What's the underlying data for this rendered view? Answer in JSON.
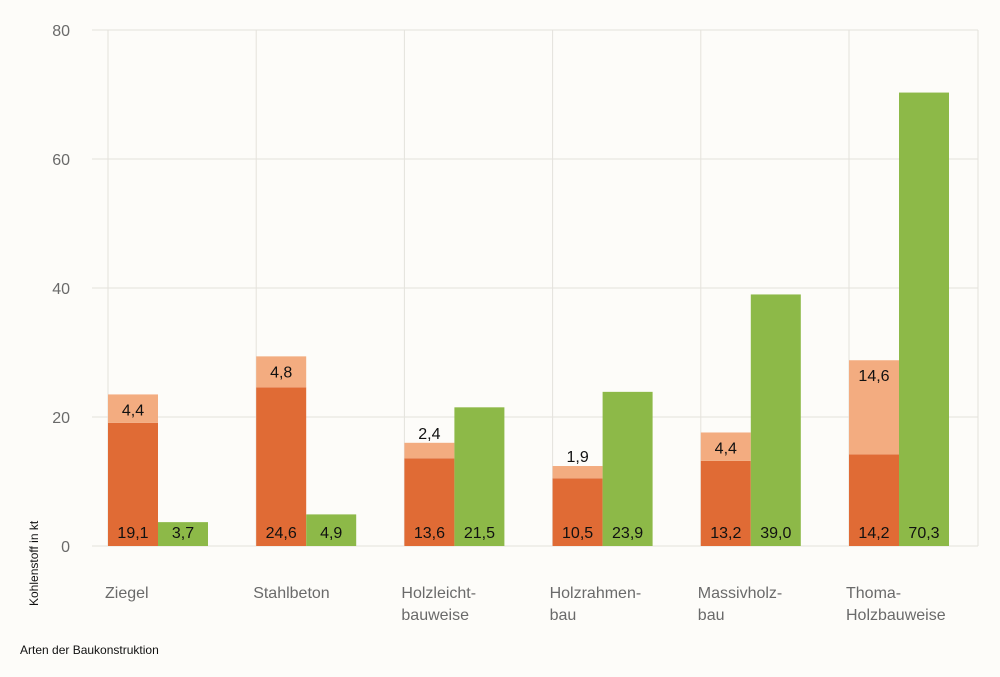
{
  "chart_data": {
    "type": "bar",
    "stacked_first_bar": true,
    "ylabel": "Kohlenstoff in kt",
    "xlabel": "Arten der Baukonstruktion",
    "ylim": [
      0,
      80
    ],
    "yticks": [
      0,
      20,
      40,
      60,
      80
    ],
    "grid": true,
    "categories": [
      [
        "Ziegel"
      ],
      [
        "Stahlbeton"
      ],
      [
        "Holzleicht-",
        "bauweise"
      ],
      [
        "Holzrahmen-",
        "bau"
      ],
      [
        "Massivholz-",
        "bau"
      ],
      [
        "Thoma-",
        "Holzbauweise"
      ]
    ],
    "series": [
      {
        "color": "#e06b35",
        "stack": "a",
        "values": [
          19.1,
          24.6,
          13.6,
          10.5,
          13.2,
          14.2
        ],
        "labels": [
          "19,1",
          "24,6",
          "13,6",
          "10,5",
          "13,2",
          "14,2"
        ]
      },
      {
        "color": "#f3ac80",
        "stack": "a",
        "values": [
          4.4,
          4.8,
          2.4,
          1.9,
          4.4,
          14.6
        ],
        "labels": [
          "4,4",
          "4,8",
          "2,4",
          "1,9",
          "4,4",
          "14,6"
        ]
      },
      {
        "color": "#8db948",
        "stack": "b",
        "values": [
          3.7,
          4.9,
          21.5,
          23.9,
          39.0,
          70.3
        ],
        "labels": [
          "3,7",
          "4,9",
          "21,5",
          "23,9",
          "39,0",
          "70,3"
        ]
      }
    ]
  }
}
